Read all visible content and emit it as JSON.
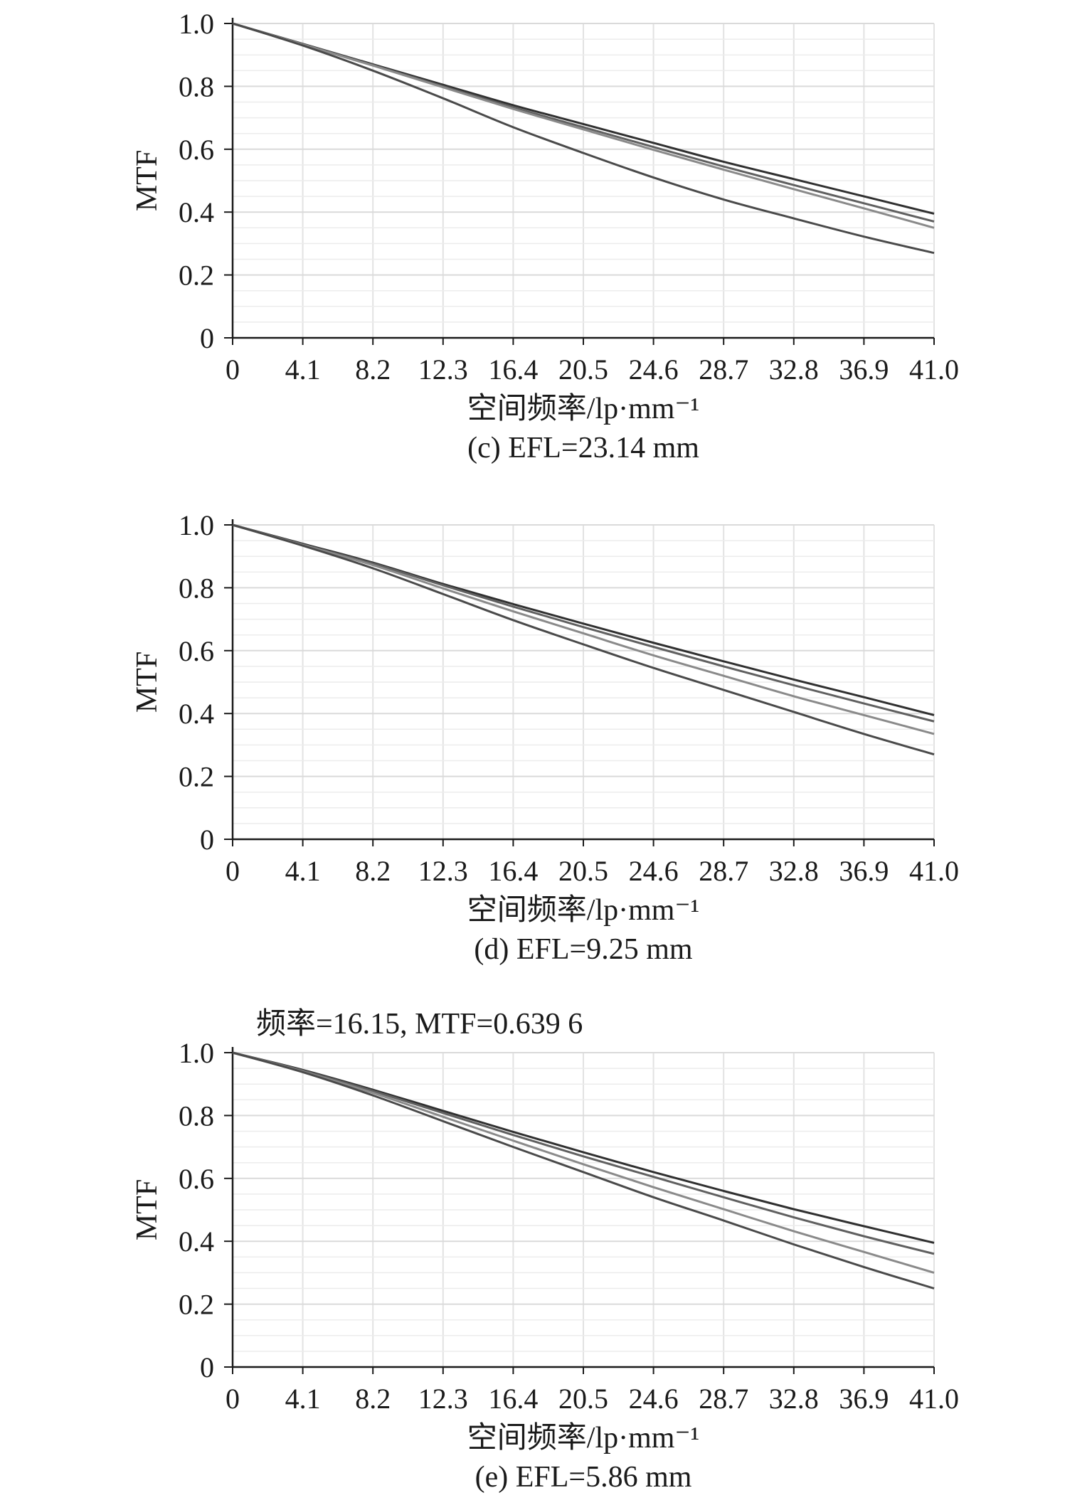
{
  "chart_data": [
    {
      "type": "line",
      "caption": "(c) EFL=23.14 mm",
      "xlabel": "空间频率/lp·mm⁻¹",
      "ylabel": "MTF",
      "annotation": "",
      "xlim": [
        0,
        41.0
      ],
      "ylim": [
        0,
        1.0
      ],
      "grid": true,
      "xticks": [
        "0",
        "4.1",
        "8.2",
        "12.3",
        "16.4",
        "20.5",
        "24.6",
        "28.7",
        "32.8",
        "36.9",
        "41.0"
      ],
      "yticks": [
        "0",
        "0.2",
        "0.4",
        "0.6",
        "0.8",
        "1.0"
      ],
      "x": [
        0,
        4.1,
        8.2,
        12.3,
        16.4,
        20.5,
        24.6,
        28.7,
        32.8,
        36.9,
        41.0
      ],
      "series": [
        {
          "values": [
            1.0,
            0.935,
            0.87,
            0.805,
            0.74,
            0.68,
            0.62,
            0.56,
            0.505,
            0.45,
            0.395
          ],
          "color": "#303030"
        },
        {
          "values": [
            1.0,
            0.934,
            0.868,
            0.8,
            0.733,
            0.67,
            0.607,
            0.545,
            0.486,
            0.428,
            0.37
          ],
          "color": "#606060"
        },
        {
          "values": [
            1.0,
            0.933,
            0.866,
            0.797,
            0.728,
            0.663,
            0.598,
            0.535,
            0.473,
            0.412,
            0.35
          ],
          "color": "#8a8a8a"
        },
        {
          "values": [
            1.0,
            0.93,
            0.85,
            0.762,
            0.67,
            0.588,
            0.51,
            0.44,
            0.38,
            0.322,
            0.27
          ],
          "color": "#4a4a4a"
        }
      ]
    },
    {
      "type": "line",
      "caption": "(d) EFL=9.25 mm",
      "xlabel": "空间频率/lp·mm⁻¹",
      "ylabel": "MTF",
      "annotation": "",
      "xlim": [
        0,
        41.0
      ],
      "ylim": [
        0,
        1.0
      ],
      "grid": true,
      "xticks": [
        "0",
        "4.1",
        "8.2",
        "12.3",
        "16.4",
        "20.5",
        "24.6",
        "28.7",
        "32.8",
        "36.9",
        "41.0"
      ],
      "yticks": [
        "0",
        "0.2",
        "0.4",
        "0.6",
        "0.8",
        "1.0"
      ],
      "x": [
        0,
        4.1,
        8.2,
        12.3,
        16.4,
        20.5,
        24.6,
        28.7,
        32.8,
        36.9,
        41.0
      ],
      "series": [
        {
          "values": [
            1.0,
            0.94,
            0.88,
            0.812,
            0.748,
            0.686,
            0.625,
            0.566,
            0.508,
            0.452,
            0.395
          ],
          "color": "#303030"
        },
        {
          "values": [
            1.0,
            0.938,
            0.877,
            0.808,
            0.74,
            0.675,
            0.612,
            0.55,
            0.49,
            0.432,
            0.375
          ],
          "color": "#606060"
        },
        {
          "values": [
            1.0,
            0.936,
            0.872,
            0.798,
            0.725,
            0.655,
            0.585,
            0.52,
            0.455,
            0.395,
            0.335
          ],
          "color": "#8a8a8a"
        },
        {
          "values": [
            1.0,
            0.934,
            0.862,
            0.78,
            0.697,
            0.62,
            0.545,
            0.475,
            0.405,
            0.335,
            0.27
          ],
          "color": "#4a4a4a"
        }
      ]
    },
    {
      "type": "line",
      "caption": "(e) EFL=5.86 mm",
      "xlabel": "空间频率/lp·mm⁻¹",
      "ylabel": "MTF",
      "annotation": "频率=16.15, MTF=0.639 6",
      "xlim": [
        0,
        41.0
      ],
      "ylim": [
        0,
        1.0
      ],
      "grid": true,
      "xticks": [
        "0",
        "4.1",
        "8.2",
        "12.3",
        "16.4",
        "20.5",
        "24.6",
        "28.7",
        "32.8",
        "36.9",
        "41.0"
      ],
      "yticks": [
        "0",
        "0.2",
        "0.4",
        "0.6",
        "0.8",
        "1.0"
      ],
      "x": [
        0,
        4.1,
        8.2,
        12.3,
        16.4,
        20.5,
        24.6,
        28.7,
        32.8,
        36.9,
        41.0
      ],
      "series": [
        {
          "values": [
            1.0,
            0.945,
            0.882,
            0.815,
            0.748,
            0.683,
            0.62,
            0.56,
            0.502,
            0.448,
            0.395
          ],
          "color": "#303030"
        },
        {
          "values": [
            1.0,
            0.943,
            0.878,
            0.808,
            0.738,
            0.67,
            0.605,
            0.54,
            0.476,
            0.416,
            0.36
          ],
          "color": "#606060"
        },
        {
          "values": [
            1.0,
            0.94,
            0.872,
            0.796,
            0.72,
            0.645,
            0.572,
            0.502,
            0.432,
            0.366,
            0.3
          ],
          "color": "#8a8a8a"
        },
        {
          "values": [
            1.0,
            0.938,
            0.864,
            0.782,
            0.7,
            0.62,
            0.54,
            0.466,
            0.39,
            0.318,
            0.25
          ],
          "color": "#4a4a4a"
        }
      ]
    }
  ]
}
